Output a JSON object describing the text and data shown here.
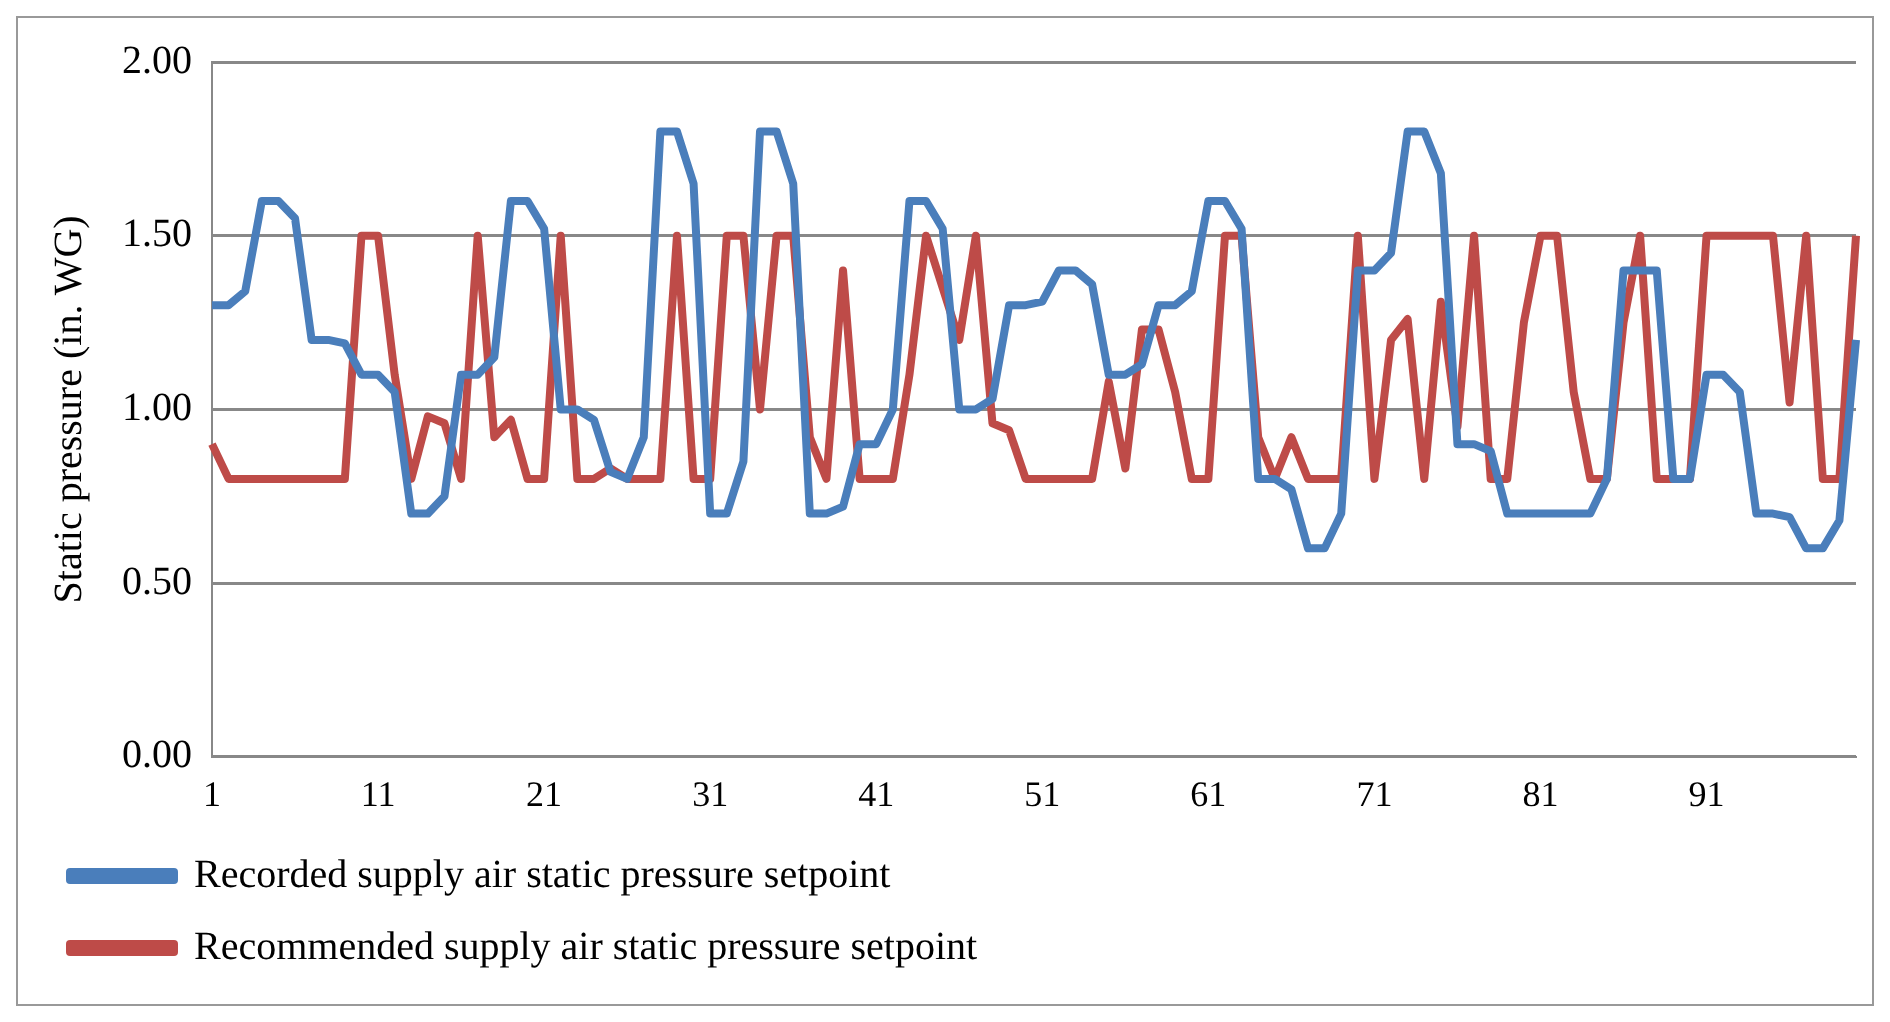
{
  "chart_data": {
    "type": "line",
    "ylabel": "Static pressure (in. WG)",
    "categories": [
      "1",
      null,
      null,
      null,
      null,
      null,
      null,
      null,
      null,
      null,
      "11",
      null,
      null,
      null,
      null,
      null,
      null,
      null,
      null,
      null,
      "21",
      null,
      null,
      null,
      null,
      null,
      null,
      null,
      null,
      null,
      "31",
      null,
      null,
      null,
      null,
      null,
      null,
      null,
      null,
      null,
      "41",
      null,
      null,
      null,
      null,
      null,
      null,
      null,
      null,
      null,
      "51",
      null,
      null,
      null,
      null,
      null,
      null,
      null,
      null,
      null,
      "61",
      null,
      null,
      null,
      null,
      null,
      null,
      null,
      null,
      null,
      "71",
      null,
      null,
      null,
      null,
      null,
      null,
      null,
      null,
      null,
      "81",
      null,
      null,
      null,
      null,
      null,
      null,
      null,
      null,
      null,
      "91",
      null,
      null,
      null,
      null,
      null,
      null,
      null,
      null,
      null
    ],
    "series": [
      {
        "name": "Recorded supply air static pressure setpoint",
        "color": "#4a7ebb",
        "values": [
          1.3,
          1.3,
          1.34,
          1.6,
          1.6,
          1.55,
          1.2,
          1.2,
          1.19,
          1.1,
          1.1,
          1.05,
          0.7,
          0.7,
          0.75,
          1.1,
          1.1,
          1.15,
          1.6,
          1.6,
          1.52,
          1.0,
          1.0,
          0.97,
          0.82,
          0.8,
          0.92,
          1.8,
          1.8,
          1.65,
          0.7,
          0.7,
          0.85,
          1.8,
          1.8,
          1.65,
          0.7,
          0.7,
          0.72,
          0.9,
          0.9,
          1.0,
          1.6,
          1.6,
          1.52,
          1.0,
          1.0,
          1.03,
          1.3,
          1.3,
          1.31,
          1.4,
          1.4,
          1.36,
          1.1,
          1.1,
          1.13,
          1.3,
          1.3,
          1.34,
          1.6,
          1.6,
          1.52,
          0.8,
          0.8,
          0.77,
          0.6,
          0.6,
          0.7,
          1.4,
          1.4,
          1.45,
          1.8,
          1.8,
          1.68,
          0.9,
          0.9,
          0.88,
          0.7,
          0.7,
          0.7,
          0.7,
          0.7,
          0.7,
          0.8,
          1.4,
          1.4,
          1.4,
          0.8,
          0.8,
          1.1,
          1.1,
          1.05,
          0.7,
          0.7,
          0.69,
          0.6,
          0.6,
          0.68,
          1.2
        ]
      },
      {
        "name": "Recommended supply air static pressure setpoint",
        "color": "#be4b48",
        "values": [
          0.9,
          0.8,
          0.8,
          0.8,
          0.8,
          0.8,
          0.8,
          0.8,
          0.8,
          1.5,
          1.5,
          1.1,
          0.8,
          0.98,
          0.96,
          0.8,
          1.5,
          0.92,
          0.97,
          0.8,
          0.8,
          1.5,
          0.8,
          0.8,
          0.83,
          0.8,
          0.8,
          0.8,
          1.5,
          0.8,
          0.8,
          1.5,
          1.5,
          1.0,
          1.5,
          1.5,
          0.92,
          0.8,
          1.4,
          0.8,
          0.8,
          0.8,
          1.1,
          1.5,
          1.35,
          1.2,
          1.5,
          0.96,
          0.94,
          0.8,
          0.8,
          0.8,
          0.8,
          0.8,
          1.08,
          0.83,
          1.23,
          1.23,
          1.05,
          0.8,
          0.8,
          1.5,
          1.5,
          0.92,
          0.8,
          0.92,
          0.8,
          0.8,
          0.8,
          1.5,
          0.8,
          1.2,
          1.26,
          0.8,
          1.31,
          0.95,
          1.5,
          0.8,
          0.8,
          1.25,
          1.5,
          1.5,
          1.05,
          0.8,
          0.8,
          1.25,
          1.5,
          0.8,
          0.8,
          0.8,
          1.5,
          1.5,
          1.5,
          1.5,
          1.5,
          1.02,
          1.5,
          0.8,
          0.8,
          1.5
        ]
      }
    ],
    "ylim": [
      0,
      2
    ],
    "yticks": [
      {
        "value": 0,
        "label": "0.00"
      },
      {
        "value": 0.5,
        "label": "0.50"
      },
      {
        "value": 1,
        "label": "1.00"
      },
      {
        "value": 1.5,
        "label": "1.50"
      },
      {
        "value": 2,
        "label": "2.00"
      }
    ],
    "grid": "y",
    "legend": "bottom",
    "marker": "none",
    "line_style": "solid"
  }
}
